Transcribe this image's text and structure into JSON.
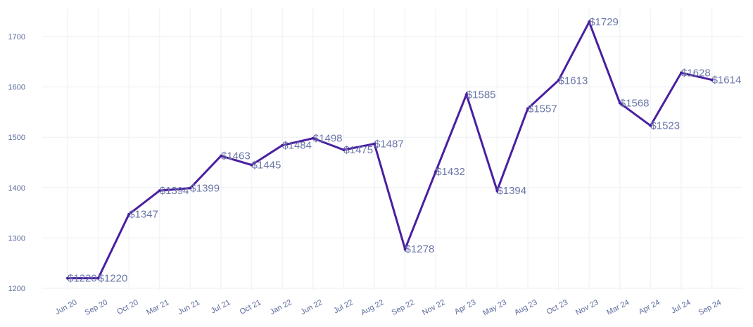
{
  "chart_data": {
    "type": "line",
    "title": "",
    "xlabel": "",
    "ylabel": "",
    "categories": [
      "Jun 20",
      "Sep 20",
      "Oct 20",
      "Mar 21",
      "Jun 21",
      "Jul 21",
      "Oct 21",
      "Jan 22",
      "Jun 22",
      "Jul 22",
      "Aug 22",
      "Sep 22",
      "Nov 22",
      "Apr 23",
      "May 23",
      "Aug 23",
      "Oct 23",
      "Nov 23",
      "Mar 24",
      "Apr 24",
      "Jul 24",
      "Sep 24"
    ],
    "series": [
      {
        "values": [
          1220,
          1220,
          1347,
          1394,
          1399,
          1463,
          1445,
          1484,
          1498,
          1475,
          1487,
          1278,
          1432,
          1585,
          1394,
          1557,
          1613,
          1729,
          1568,
          1523,
          1628,
          1614
        ],
        "labels": [
          "$1220",
          "$1220",
          "$1347",
          "$1394",
          "$1399",
          "$1463",
          "$1445",
          "$1484",
          "$1498",
          "$1475",
          "$1487",
          "$1278",
          "$1432",
          "$1585",
          "$1394",
          "$1557",
          "$1613",
          "$1729",
          "$1568",
          "$1523",
          "$1628",
          "$1614"
        ],
        "color": "#4a1fa0"
      }
    ],
    "yticks": [
      1200,
      1300,
      1400,
      1500,
      1600,
      1700
    ],
    "ylim": [
      1200,
      1760
    ],
    "grid": true,
    "legend": "none"
  }
}
